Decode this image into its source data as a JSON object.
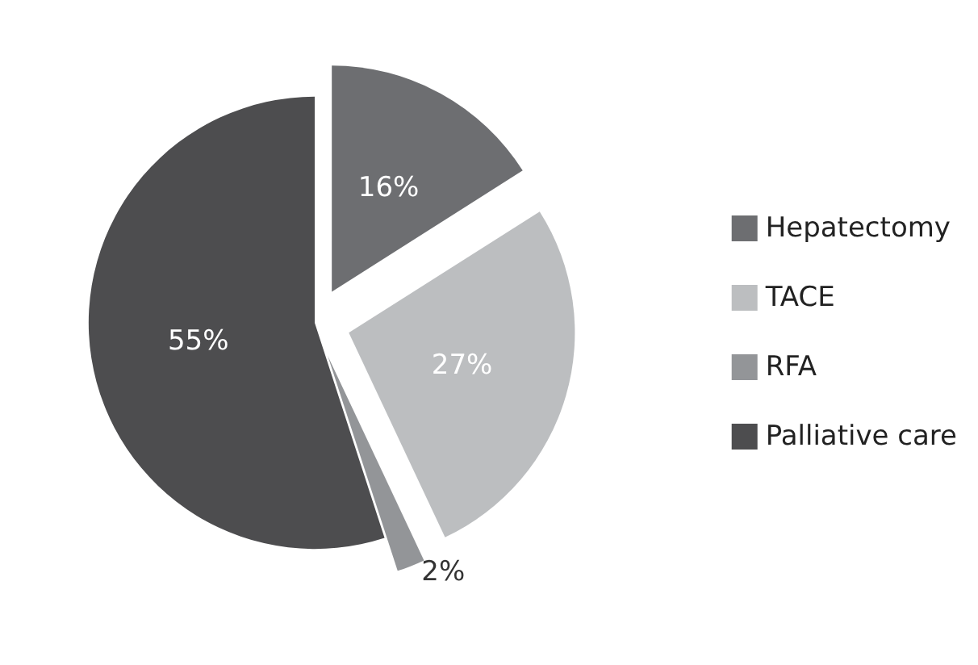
{
  "chart_data": {
    "type": "pie",
    "categories": [
      "Hepatectomy",
      "TACE",
      "RFA",
      "Palliative care"
    ],
    "values": [
      16,
      27,
      2,
      55
    ],
    "colors": [
      "#6d6e71",
      "#bcbec0",
      "#939598",
      "#4d4d4f"
    ],
    "legend": "right",
    "value_labels": [
      "16%",
      "27%",
      "2%",
      "55%"
    ]
  }
}
